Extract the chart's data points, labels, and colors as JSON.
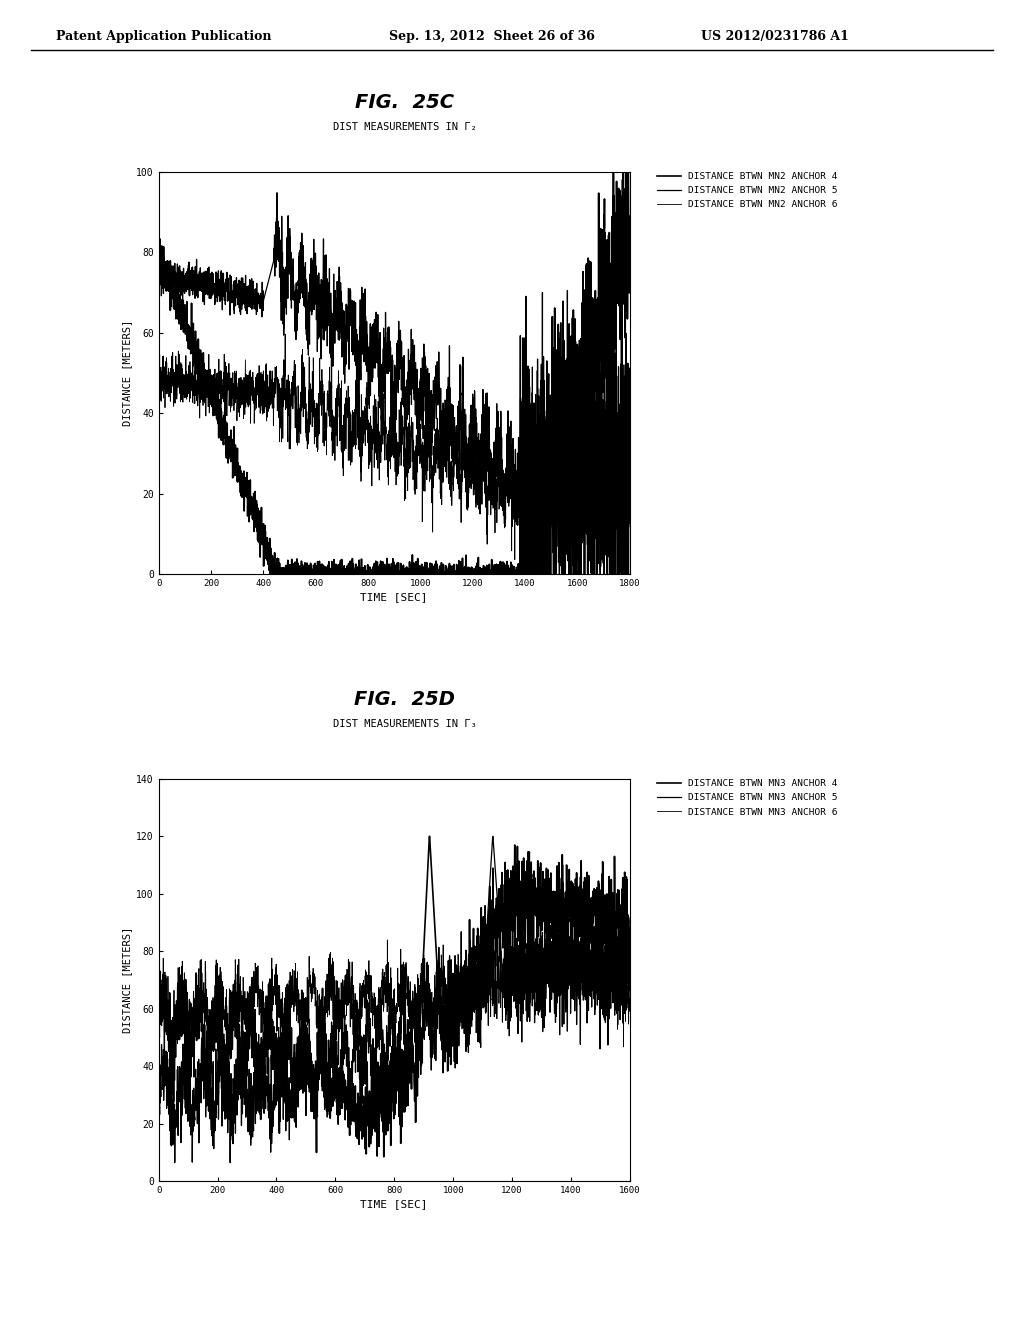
{
  "fig_title_25c": "FIG.  25C",
  "subtitle_25c": "DIST MEASUREMENTS IN Γ₂",
  "fig_title_25d": "FIG.  25D",
  "subtitle_25d": "DIST MEASUREMENTS IN Γ₃",
  "xlabel": "TIME [SEC]",
  "ylabel": "DISTANCE [METERS]",
  "header_left": "Patent Application Publication",
  "header_mid": "Sep. 13, 2012  Sheet 26 of 36",
  "header_right": "US 2012/0231786 A1",
  "plot1": {
    "xlim": [
      0,
      1800
    ],
    "ylim": [
      0,
      100
    ],
    "xticks": [
      0,
      200,
      400,
      600,
      800,
      1000,
      1200,
      1400,
      1600,
      1800
    ],
    "yticks": [
      0,
      20,
      40,
      60,
      80,
      100
    ],
    "legend": [
      "DISTANCE BTWN MN2 ANCHOR 4",
      "DISTANCE BTWN MN2 ANCHOR 5",
      "DISTANCE BTWN MN2 ANCHOR 6"
    ]
  },
  "plot2": {
    "xlim": [
      0,
      1600
    ],
    "ylim": [
      0,
      140
    ],
    "xticks": [
      0,
      200,
      400,
      600,
      800,
      1000,
      1200,
      1400,
      1600
    ],
    "yticks": [
      0,
      20,
      40,
      60,
      80,
      100,
      120,
      140
    ],
    "legend": [
      "DISTANCE BTWN MN3 ANCHOR 4",
      "DISTANCE BTWN MN3 ANCHOR 5",
      "DISTANCE BTWN MN3 ANCHOR 6"
    ]
  },
  "bg_color": "#ffffff"
}
